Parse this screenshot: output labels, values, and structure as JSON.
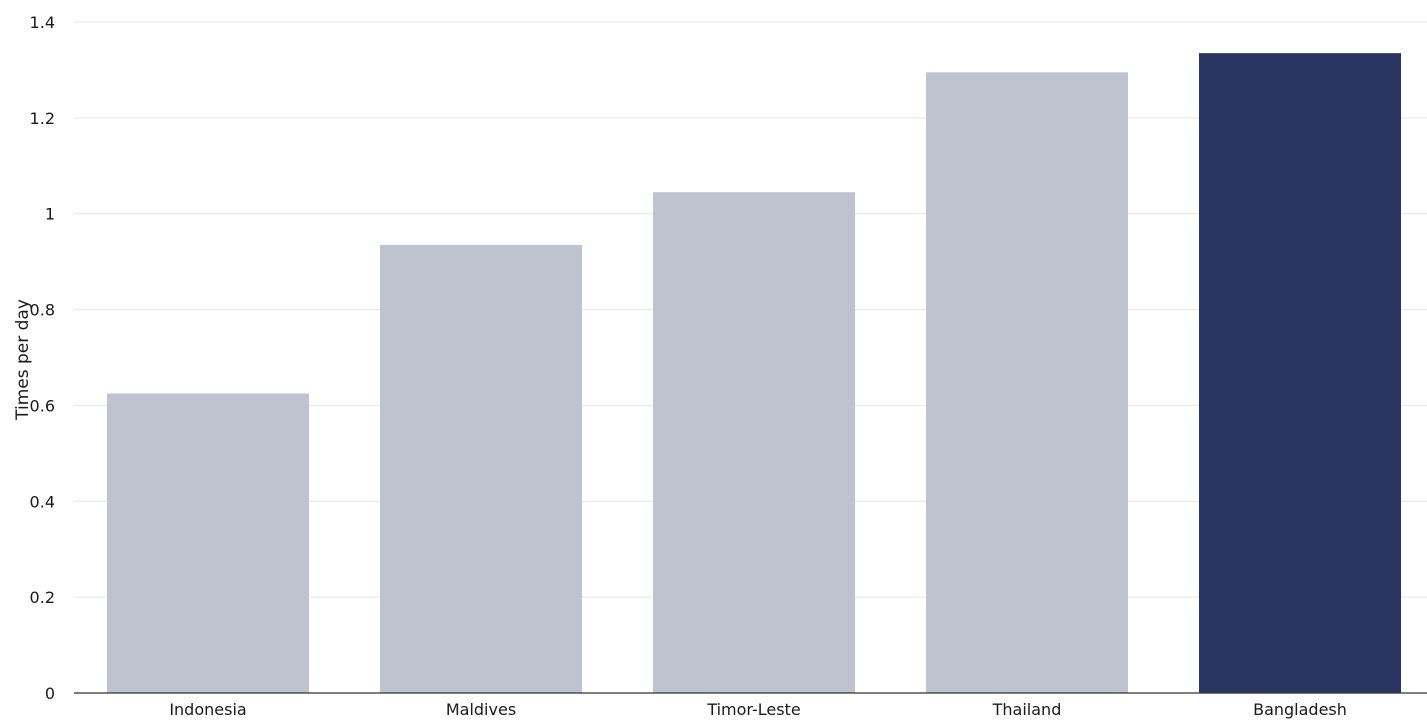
{
  "chart_data": {
    "type": "bar",
    "categories": [
      "Indonesia",
      "Maldives",
      "Timor-Leste",
      "Thailand",
      "Bangladesh"
    ],
    "values": [
      0.625,
      0.935,
      1.045,
      1.295,
      1.335
    ],
    "highlight_index": 4,
    "title": "",
    "xlabel": "",
    "ylabel": "Times per day",
    "ylim": [
      0,
      1.4
    ],
    "yticks": [
      0,
      0.2,
      0.4,
      0.6,
      0.8,
      1,
      1.2,
      1.4
    ],
    "ytick_labels": [
      "0",
      "0.2",
      "0.4",
      "0.6",
      "0.8",
      "1",
      "1.2",
      "1.4"
    ],
    "grid": true,
    "colors": {
      "bar": "#bfc3cf",
      "highlight": "#293560",
      "grid": "#e6e6e6",
      "baseline": "#333333",
      "text": "#1a1a1a"
    }
  }
}
